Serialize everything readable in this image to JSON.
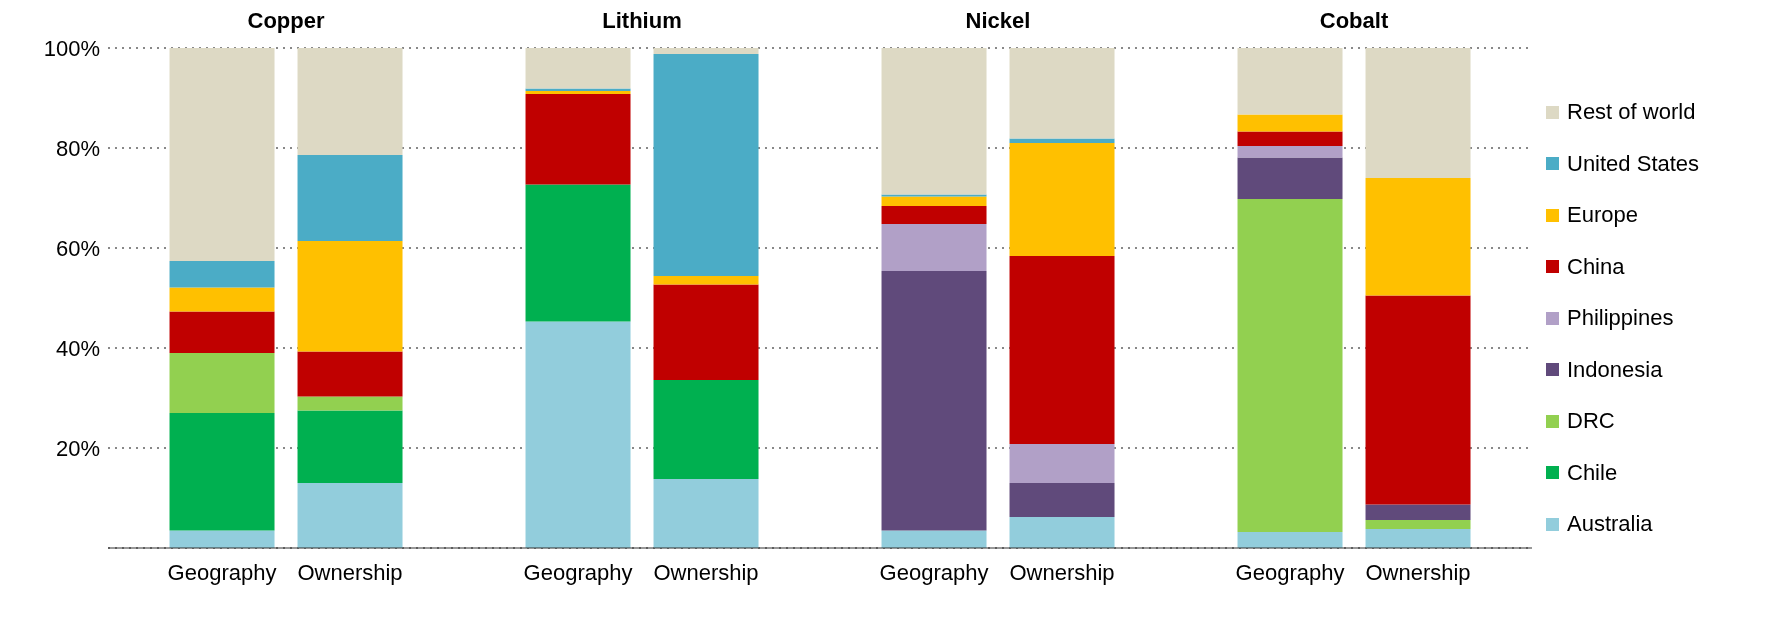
{
  "chart_data": [
    {
      "type": "bar",
      "title": "Copper",
      "categories": [
        "Geography",
        "Ownership"
      ],
      "stacked": true,
      "ylim": [
        0,
        100
      ],
      "yticks": [
        {
          "value": 0,
          "label": null
        },
        {
          "value": 20,
          "label": "20%"
        },
        {
          "value": 40,
          "label": "40%"
        },
        {
          "value": 60,
          "label": "60%"
        },
        {
          "value": 80,
          "label": "80%"
        },
        {
          "value": 100,
          "label": "100%"
        }
      ],
      "grid": "y",
      "series": [
        {
          "color": "#92cddc",
          "values": [
            3.5,
            13.0
          ]
        },
        {
          "color": "#00b050",
          "values": [
            23.5,
            14.5
          ]
        },
        {
          "color": "#92d050",
          "values": [
            12.0,
            2.8
          ]
        },
        {
          "color": "#604a7b",
          "values": [
            null,
            null
          ]
        },
        {
          "color": "#b1a0c7",
          "values": [
            null,
            null
          ]
        },
        {
          "color": "#c00000",
          "values": [
            8.3,
            9.0
          ]
        },
        {
          "color": "#ffc000",
          "values": [
            4.8,
            22.1
          ]
        },
        {
          "color": "#4bacc6",
          "values": [
            5.3,
            17.2
          ]
        },
        {
          "color": "#ddd9c4",
          "values": [
            42.6,
            21.4
          ]
        }
      ]
    },
    {
      "type": "bar",
      "title": "Lithium",
      "categories": [
        "Geography",
        "Ownership"
      ],
      "stacked": true,
      "ylim": [
        0,
        100
      ],
      "yticks": [
        0,
        20,
        40,
        60,
        80,
        100
      ],
      "grid": "y",
      "tick_labels": "x",
      "series": [
        {
          "color": "#92cddc",
          "values": [
            45.3,
            13.8
          ]
        },
        {
          "color": "#00b050",
          "values": [
            27.4,
            19.8
          ]
        },
        {
          "color": "#92d050",
          "values": [
            null,
            null
          ]
        },
        {
          "color": "#604a7b",
          "values": [
            null,
            null
          ]
        },
        {
          "color": "#b1a0c7",
          "values": [
            null,
            null
          ]
        },
        {
          "color": "#c00000",
          "values": [
            18.1,
            19.1
          ]
        },
        {
          "color": "#ffc000",
          "values": [
            0.6,
            1.7
          ]
        },
        {
          "color": "#4bacc6",
          "values": [
            0.5,
            44.4
          ]
        },
        {
          "color": "#ddd9c4",
          "values": [
            8.1,
            1.2
          ]
        }
      ]
    },
    {
      "type": "bar",
      "title": "Nickel",
      "categories": [
        "Geography",
        "Ownership"
      ],
      "stacked": true,
      "ylim": [
        0,
        100
      ],
      "yticks": [
        0,
        20,
        40,
        60,
        80,
        100
      ],
      "grid": "y",
      "tick_labels": "x",
      "series": [
        {
          "color": "#92cddc",
          "values": [
            3.5,
            6.2
          ]
        },
        {
          "color": "#00b050",
          "values": [
            null,
            null
          ]
        },
        {
          "color": "#92d050",
          "values": [
            null,
            null
          ]
        },
        {
          "color": "#604a7b",
          "values": [
            51.9,
            6.8
          ]
        },
        {
          "color": "#b1a0c7",
          "values": [
            9.4,
            7.8
          ]
        },
        {
          "color": "#c00000",
          "values": [
            3.6,
            37.6
          ]
        },
        {
          "color": "#ffc000",
          "values": [
            1.9,
            22.6
          ]
        },
        {
          "color": "#4bacc6",
          "values": [
            0.4,
            0.9
          ]
        },
        {
          "color": "#ddd9c4",
          "values": [
            29.3,
            18.1
          ]
        }
      ]
    },
    {
      "type": "bar",
      "title": "Cobalt",
      "categories": [
        "Geography",
        "Ownership"
      ],
      "stacked": true,
      "ylim": [
        0,
        100
      ],
      "yticks": [
        0,
        20,
        40,
        60,
        80,
        100
      ],
      "grid": "y",
      "tick_labels": "x",
      "legend": "right",
      "series": [
        {
          "name": "Australia",
          "color": "#92cddc",
          "values": [
            3.2,
            3.8
          ]
        },
        {
          "name": "Chile",
          "color": "#00b050",
          "values": [
            null,
            null
          ]
        },
        {
          "name": "DRC",
          "color": "#92d050",
          "values": [
            66.6,
            1.8
          ]
        },
        {
          "name": "Indonesia",
          "color": "#604a7b",
          "values": [
            8.3,
            3.1
          ]
        },
        {
          "name": "Philippines",
          "color": "#b1a0c7",
          "values": [
            2.3,
            null
          ]
        },
        {
          "name": "China",
          "color": "#c00000",
          "values": [
            2.9,
            41.8
          ]
        },
        {
          "name": "Europe",
          "color": "#ffc000",
          "values": [
            3.4,
            23.5
          ]
        },
        {
          "name": "United States",
          "color": "#4bacc6",
          "values": [
            null,
            null
          ]
        },
        {
          "name": "Rest of world",
          "color": "#ddd9c4",
          "values": [
            13.3,
            26.0
          ]
        }
      ]
    }
  ]
}
